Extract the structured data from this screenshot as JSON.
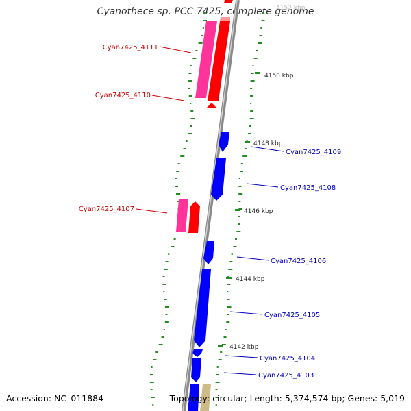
{
  "title": "Cyanothece sp. PCC 7425, complete genome",
  "accession": "Accession: NC_011884",
  "summary": "Topology: circular; Length: 5,374,574 bp; Genes: 5,019",
  "colors": {
    "backbone": "#888888",
    "forward_cds": "#ff0000",
    "forward_gene": "#ff3399",
    "reverse_cds": "#0000ff",
    "other_gene": "#ccbb88",
    "label_forward": "#cc0000",
    "label_reverse": "#0000bb",
    "gc_dots": "#228b22"
  },
  "ticks": [
    {
      "label": "4150 kbp"
    },
    {
      "label": "4148 kbp"
    },
    {
      "label": "4146 kbp"
    },
    {
      "label": "4144 kbp"
    },
    {
      "label": "4142 kbp"
    }
  ],
  "genes_forward": [
    {
      "label": "Cyan7425_4111"
    },
    {
      "label": "Cyan7425_4110"
    },
    {
      "label": "Cyan7425_4107"
    }
  ],
  "genes_reverse": [
    {
      "label": "Cyan7425_4109"
    },
    {
      "label": "Cyan7425_4108"
    },
    {
      "label": "Cyan7425_4106"
    },
    {
      "label": "Cyan7425_4105"
    },
    {
      "label": "Cyan7425_4104"
    },
    {
      "label": "Cyan7425_4103"
    }
  ]
}
